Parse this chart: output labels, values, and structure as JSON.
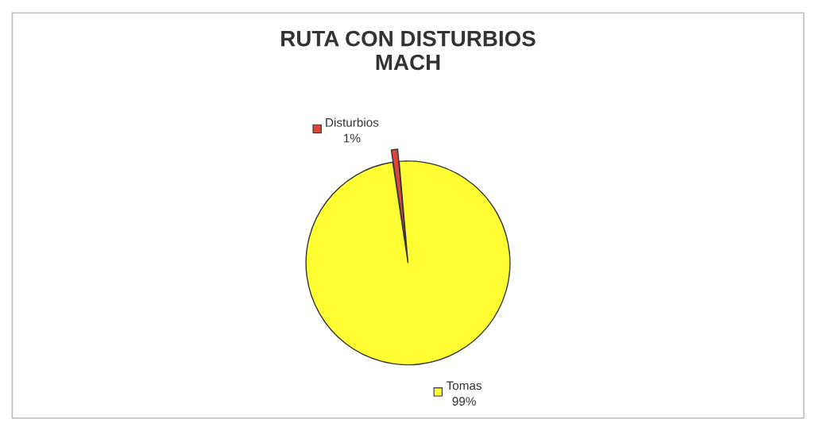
{
  "chart_data": {
    "type": "pie",
    "title": "RUTA CON DISTURBIOS\nMACH",
    "categories": [
      "Disturbios",
      "Tomas"
    ],
    "values": [
      1,
      99
    ],
    "colors": [
      "#d9463a",
      "#ffff33"
    ],
    "value_labels": [
      "1%",
      "99%"
    ],
    "legend": "center"
  }
}
